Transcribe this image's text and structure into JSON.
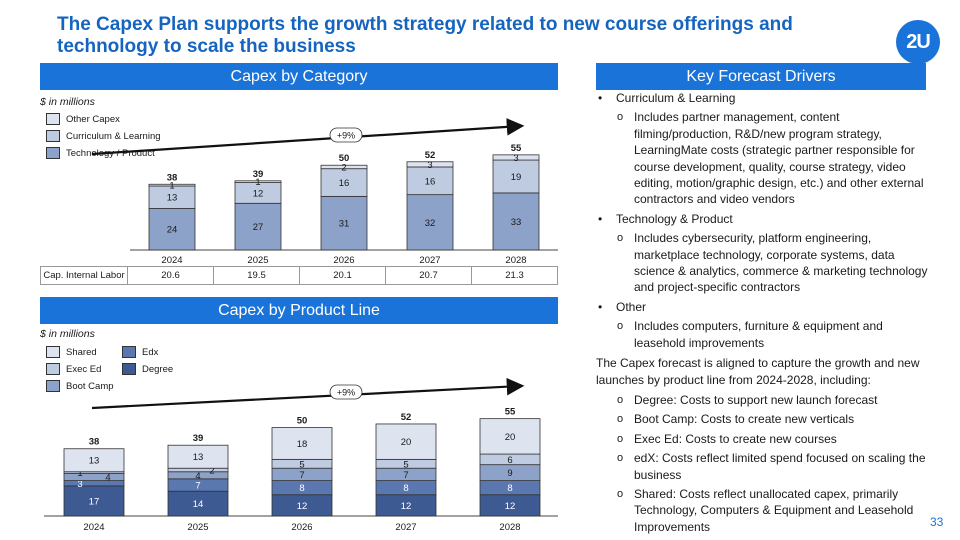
{
  "title": "The Capex Plan supports the growth strategy related to new course offerings and technology to scale the business",
  "logo": "2U",
  "page_number": "33",
  "colors": {
    "header_blue": "#1a73d9",
    "title_blue": "#1565c0",
    "other_capex": "#dde3ef",
    "curriculum": "#bfcbe0",
    "technology": "#8da2c9",
    "shared": "#dde3ef",
    "exec_ed": "#bfcbe0",
    "boot_camp": "#8da2c9",
    "edx": "#5a77b0",
    "degree": "#3d5a93"
  },
  "capex_by_category": {
    "header": "Capex by Category",
    "units": "$ in millions",
    "legend": [
      "Other Capex",
      "Curriculum & Learning",
      "Technology / Product"
    ],
    "cagr_label": "+9%",
    "labor_label": "Cap. Internal Labor",
    "labor_values": [
      "20.6",
      "19.5",
      "20.1",
      "20.7",
      "21.3"
    ]
  },
  "capex_by_product": {
    "header": "Capex by Product Line",
    "units": "$ in millions",
    "legend": [
      "Shared",
      "Edx",
      "Exec Ed",
      "Degree",
      "Boot Camp"
    ],
    "cagr_label": "+9%"
  },
  "chart_data": [
    {
      "type": "bar",
      "title": "Capex by Category",
      "stacked": true,
      "categories": [
        "2024",
        "2025",
        "2026",
        "2027",
        "2028"
      ],
      "series": [
        {
          "name": "Technology / Product",
          "values": [
            24,
            27,
            31,
            32,
            33
          ]
        },
        {
          "name": "Curriculum & Learning",
          "values": [
            13,
            12,
            16,
            16,
            19
          ]
        },
        {
          "name": "Other Capex",
          "values": [
            1,
            1,
            2,
            3,
            3
          ]
        }
      ],
      "totals": [
        38,
        39,
        50,
        52,
        55
      ],
      "ylim": [
        0,
        60
      ]
    },
    {
      "type": "bar",
      "title": "Capex by Product Line",
      "stacked": true,
      "categories": [
        "2024",
        "2025",
        "2026",
        "2027",
        "2028"
      ],
      "series": [
        {
          "name": "Degree",
          "values": [
            17,
            14,
            12,
            12,
            12
          ]
        },
        {
          "name": "Edx",
          "values": [
            3,
            7,
            8,
            8,
            8
          ]
        },
        {
          "name": "Boot Camp",
          "values": [
            4,
            4,
            7,
            7,
            9
          ]
        },
        {
          "name": "Exec Ed",
          "values": [
            1,
            2,
            5,
            5,
            6
          ]
        },
        {
          "name": "Shared",
          "values": [
            13,
            13,
            18,
            20,
            20
          ]
        }
      ],
      "totals": [
        38,
        39,
        50,
        52,
        55
      ],
      "ylim": [
        0,
        60
      ]
    }
  ],
  "drivers": {
    "header": "Key Forecast Drivers",
    "b1_curriculum": "Curriculum & Learning",
    "b2_curriculum": "Includes partner management, content filming/production, R&D/new program strategy, LearningMate costs (strategic partner responsible for course development, quality, course strategy, video editing, motion/graphic design, etc.) and other external contractors and video vendors",
    "b1_tech": "Technology & Product",
    "b2_tech": "Includes cybersecurity, platform engineering, marketplace technology, corporate systems, data science & analytics, commerce & marketing technology and project-specific contractors",
    "b1_other": "Other",
    "b2_other": "Includes computers, furniture & equipment and leasehold improvements",
    "para": "The Capex forecast is aligned to capture the growth and new launches by product line from 2024-2028, including:",
    "p_degree": "Degree: Costs to support new launch forecast",
    "p_bootcamp": "Boot Camp: Costs to create new verticals",
    "p_execed": "Exec Ed: Costs to create new courses",
    "p_edx": "edX: Costs reflect limited spend focused on scaling the business",
    "p_shared": "Shared: Costs reflect unallocated capex, primarily Technology, Computers & Equipment and Leasehold Improvements"
  }
}
